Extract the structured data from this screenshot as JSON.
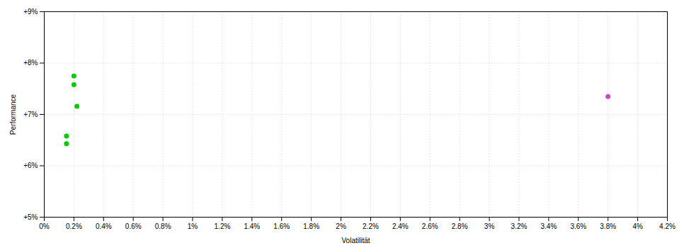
{
  "chart_data": {
    "type": "scatter",
    "xlabel": "Volatilität",
    "ylabel": "Performance",
    "xlim": [
      0.0,
      0.042
    ],
    "ylim": [
      0.05,
      0.09
    ],
    "xticks": [
      {
        "value": 0.0,
        "label": "0%"
      },
      {
        "value": 0.002,
        "label": "0.2%"
      },
      {
        "value": 0.004,
        "label": "0.4%"
      },
      {
        "value": 0.006,
        "label": "0.6%"
      },
      {
        "value": 0.008,
        "label": "0.8%"
      },
      {
        "value": 0.01,
        "label": "1%"
      },
      {
        "value": 0.012,
        "label": "1.2%"
      },
      {
        "value": 0.014,
        "label": "1.4%"
      },
      {
        "value": 0.016,
        "label": "1.6%"
      },
      {
        "value": 0.018,
        "label": "1.8%"
      },
      {
        "value": 0.02,
        "label": "2%"
      },
      {
        "value": 0.022,
        "label": "2.2%"
      },
      {
        "value": 0.024,
        "label": "2.4%"
      },
      {
        "value": 0.026,
        "label": "2.6%"
      },
      {
        "value": 0.028,
        "label": "2.8%"
      },
      {
        "value": 0.03,
        "label": "3%"
      },
      {
        "value": 0.032,
        "label": "3.2%"
      },
      {
        "value": 0.034,
        "label": "3.4%"
      },
      {
        "value": 0.036,
        "label": "3.6%"
      },
      {
        "value": 0.038,
        "label": "3.8%"
      },
      {
        "value": 0.04,
        "label": "4%"
      },
      {
        "value": 0.042,
        "label": "4.2%"
      }
    ],
    "yticks": [
      {
        "value": 0.05,
        "label": "+5%"
      },
      {
        "value": 0.06,
        "label": "+6%"
      },
      {
        "value": 0.07,
        "label": "+7%"
      },
      {
        "value": 0.08,
        "label": "+8%"
      },
      {
        "value": 0.09,
        "label": "+9%"
      }
    ],
    "grid": true,
    "series": [
      {
        "color": "#00cc00",
        "x": [
          0.002,
          0.002,
          0.0022,
          0.0015,
          0.0015
        ],
        "values": [
          0.0775,
          0.0758,
          0.0716,
          0.0658,
          0.0643
        ]
      },
      {
        "color": "#cc44cc",
        "x": [
          0.038
        ],
        "values": [
          0.0735
        ]
      }
    ]
  }
}
